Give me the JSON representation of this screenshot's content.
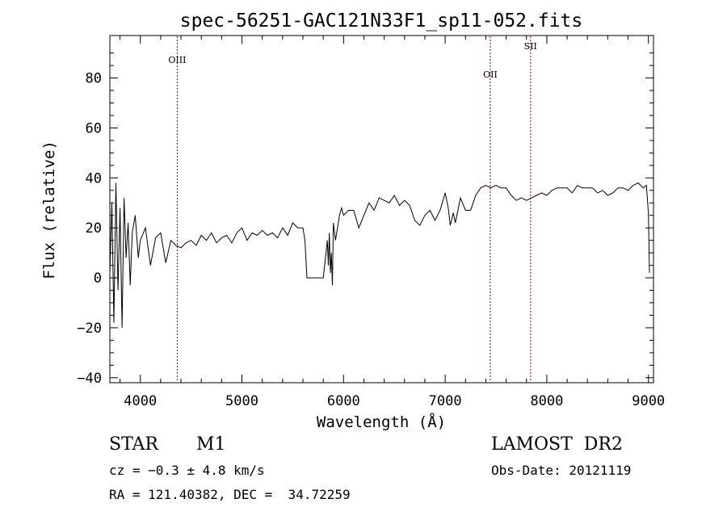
{
  "chart_data": {
    "type": "line",
    "title": "spec-56251-GAC121N33F1_sp11-052.fits",
    "xlabel": "Wavelength (Å)",
    "ylabel": "Flux (relative)",
    "xlim": [
      3700,
      9050
    ],
    "ylim": [
      -42,
      97
    ],
    "xticks": [
      4000,
      5000,
      6000,
      7000,
      8000,
      9000
    ],
    "xtick_labels": [
      "4000",
      "5000",
      "6000",
      "7000",
      "8000",
      "9000"
    ],
    "yticks": [
      -40,
      -20,
      0,
      20,
      40,
      60,
      80
    ],
    "ytick_labels": [
      "−40",
      "−20",
      "0",
      "20",
      "40",
      "60",
      "80"
    ],
    "grid": false,
    "line_color": "#000000",
    "marker_color": "#8b0000",
    "line_markers": [
      {
        "label": "OIII",
        "x": 4363
      },
      {
        "label": "OII",
        "x": 7444
      },
      {
        "label": "SII",
        "x": 7840
      }
    ],
    "series": [
      {
        "x": [
          3700,
          3720,
          3740,
          3760,
          3780,
          3800,
          3820,
          3840,
          3860,
          3880,
          3900,
          3920,
          3950,
          3980,
          4000,
          4050,
          4100,
          4150,
          4200,
          4250,
          4300,
          4350,
          4400,
          4450,
          4500,
          4550,
          4600,
          4650,
          4700,
          4750,
          4800,
          4850,
          4900,
          4950,
          5000,
          5050,
          5100,
          5150,
          5200,
          5250,
          5300,
          5350,
          5400,
          5450,
          5500,
          5550,
          5600,
          5620,
          5640,
          5700,
          5750,
          5800,
          5840,
          5850,
          5860,
          5870,
          5880,
          5890,
          5900,
          5920,
          5940,
          5960,
          5980,
          6000,
          6050,
          6100,
          6150,
          6200,
          6250,
          6300,
          6350,
          6400,
          6450,
          6500,
          6550,
          6600,
          6650,
          6700,
          6750,
          6800,
          6850,
          6900,
          6950,
          7000,
          7030,
          7050,
          7080,
          7100,
          7150,
          7200,
          7250,
          7300,
          7350,
          7400,
          7450,
          7500,
          7550,
          7600,
          7650,
          7700,
          7750,
          7800,
          7850,
          7900,
          7950,
          8000,
          8050,
          8100,
          8150,
          8200,
          8250,
          8300,
          8350,
          8400,
          8450,
          8500,
          8550,
          8600,
          8650,
          8700,
          8750,
          8800,
          8850,
          8900,
          8950,
          8980,
          9000,
          9010
        ],
        "y": [
          2,
          30,
          -18,
          38,
          -5,
          28,
          -20,
          32,
          8,
          22,
          -3,
          18,
          25,
          8,
          15,
          20,
          5,
          16,
          18,
          6,
          15,
          13,
          12,
          14,
          15,
          13,
          17,
          15,
          18,
          14,
          16,
          17,
          14,
          18,
          20,
          15,
          18,
          17,
          19,
          17,
          18,
          16,
          20,
          17,
          22,
          20,
          20,
          15,
          0,
          0,
          0,
          0,
          15,
          5,
          18,
          2,
          10,
          -3,
          22,
          15,
          20,
          25,
          28,
          25,
          27,
          27,
          20,
          25,
          30,
          27,
          32,
          31,
          30,
          33,
          29,
          31,
          29,
          23,
          21,
          25,
          27,
          23,
          27,
          34,
          28,
          21,
          26,
          22,
          32,
          27,
          27,
          33,
          36,
          37,
          36,
          37,
          36,
          36,
          33,
          31,
          32,
          31,
          32,
          33,
          34,
          33,
          35,
          36,
          36,
          36,
          34,
          37,
          36,
          36,
          36,
          34,
          35,
          33,
          34,
          36,
          36,
          35,
          37,
          38,
          36,
          37,
          26,
          2
        ]
      }
    ]
  },
  "footer": {
    "object_class": "STAR",
    "subclass": "M1",
    "survey": "LAMOST  DR2",
    "redshift": "cz = −0.3 ± 4.8 km/s",
    "obs_date": "Obs-Date: 20121119",
    "coords": "RA = 121.40382, DEC =  34.72259"
  }
}
